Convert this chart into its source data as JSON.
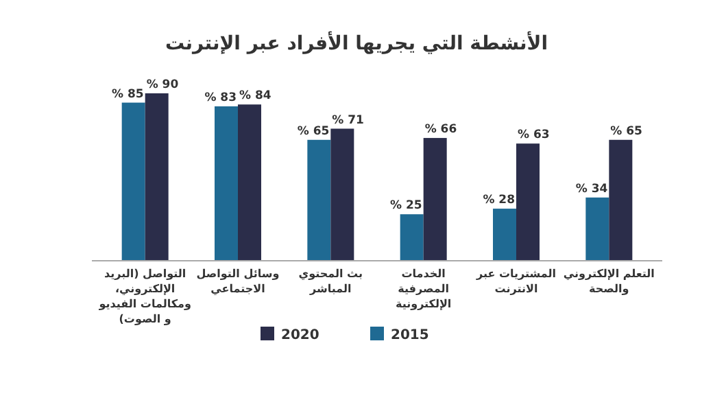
{
  "chart_data": {
    "type": "bar",
    "title": "الأنشطة التي يجريها الأفراد عبر الإنترنت",
    "categories": [
      "التواصل (البريد الإلكتروني، ومكالمات الفيديو و الصوت)",
      "وسائل التواصل الاجتماعي",
      "بث المحتوي المباشر",
      "الخدمات المصرفية الإلكترونية",
      "المشتريات عبر الانترنت",
      "التعلم الإلكتروني والصحة"
    ],
    "series": [
      {
        "name": "2015",
        "color": "#1f6a93",
        "values": [
          85,
          83,
          65,
          25,
          28,
          34
        ],
        "value_labels": [
          "% 85",
          "% 83",
          "% 65",
          "% 25",
          "% 28",
          "% 34"
        ]
      },
      {
        "name": "2020",
        "color": "#2b2d4a",
        "values": [
          90,
          84,
          71,
          66,
          63,
          65
        ],
        "value_labels": [
          "% 90",
          "% 84",
          "% 71",
          "% 66",
          "% 63",
          "% 65"
        ]
      }
    ],
    "legend": "bottom"
  }
}
